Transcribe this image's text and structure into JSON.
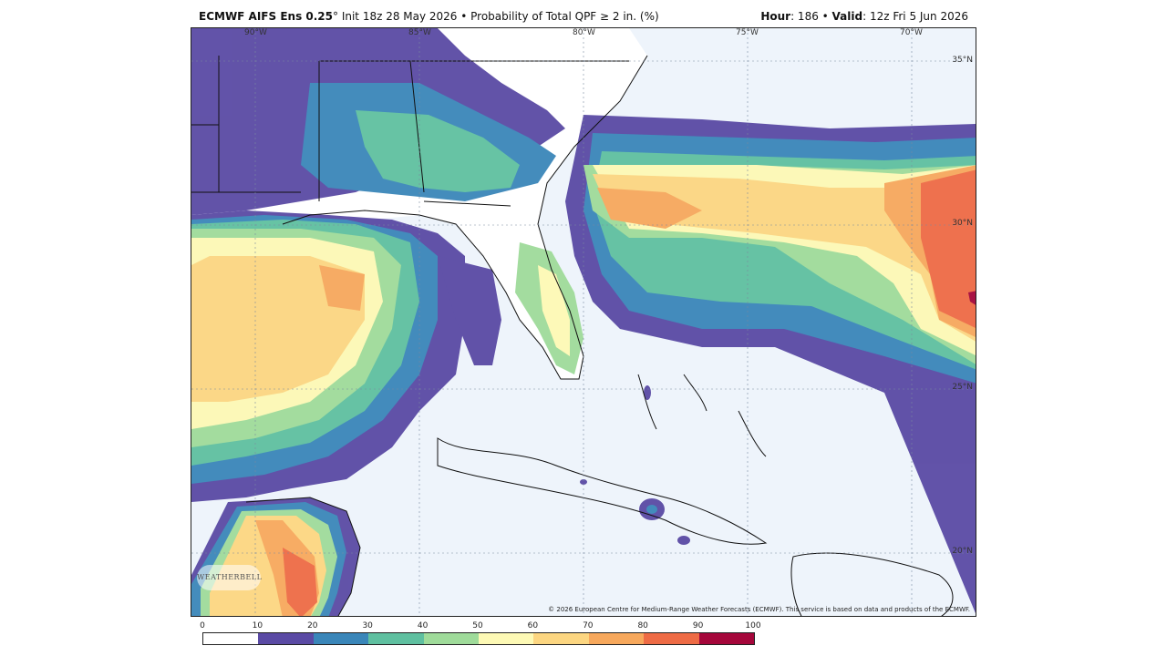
{
  "header": {
    "model": "ECMWF AIFS Ens 0.25",
    "degree": "°",
    "init": " Init 18z 28 May 2026 • Probability of Total QPF ≥ 2 in. (%)",
    "hour_label": "Hour",
    "hour_value": ": 186 • ",
    "valid_label": "Valid",
    "valid_value": ": 12z Fri 5 Jun 2026"
  },
  "map": {
    "lon_labels": [
      "90°W",
      "85°W",
      "80°W",
      "75°W",
      "70°W"
    ],
    "lat_labels": [
      "35°N",
      "30°N",
      "25°N",
      "20°N"
    ],
    "copyright": "© 2026 European Centre for Medium-Range Weather Forecasts (ECMWF). This service is based on data and products of the ECMWF.",
    "logo_text": "WEATHERBELL",
    "land_color": "#ffffff",
    "ocean_color": "#eef4fb"
  },
  "colorbar": {
    "ticks": [
      "0",
      "10",
      "20",
      "30",
      "40",
      "50",
      "60",
      "70",
      "80",
      "90",
      "100"
    ],
    "colors": [
      "#ffffff",
      "#5a4aa4",
      "#3a86b9",
      "#5fc0a0",
      "#9fdb9a",
      "#fdf9b5",
      "#fcd681",
      "#f7a85c",
      "#ee6b45",
      "#a5073b"
    ]
  }
}
